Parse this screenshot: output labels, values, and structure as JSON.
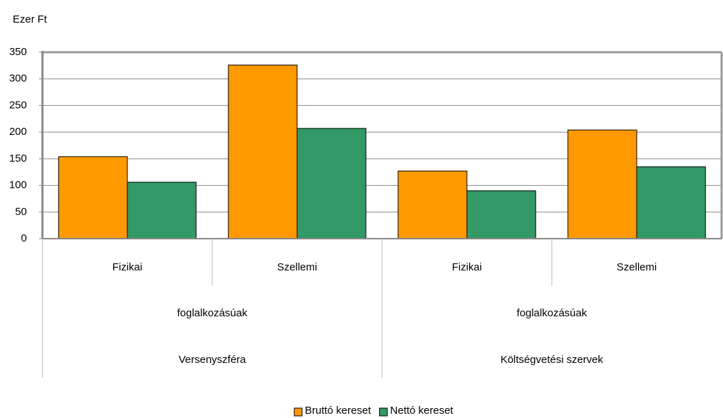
{
  "chart_data": {
    "type": "bar",
    "y_axis_label": "Ezer Ft",
    "categories": [
      "Fizikai",
      "Szellemi",
      "Fizikai",
      "Szellemi"
    ],
    "subgroups": [
      "foglalkozásúak",
      "foglalkozásúak"
    ],
    "groups": [
      "Versenyszféra",
      "Költségvetési szervek"
    ],
    "series": [
      {
        "name": "Bruttó kereset",
        "color": "#ff9900",
        "values": [
          154,
          326,
          127,
          204
        ]
      },
      {
        "name": "Nettó kereset",
        "color": "#339966",
        "values": [
          106,
          207,
          90,
          135
        ]
      }
    ],
    "ylim": [
      0,
      350
    ],
    "yticks": [
      0,
      50,
      100,
      150,
      200,
      250,
      300,
      350
    ],
    "grid": true,
    "legend": "bottom"
  }
}
